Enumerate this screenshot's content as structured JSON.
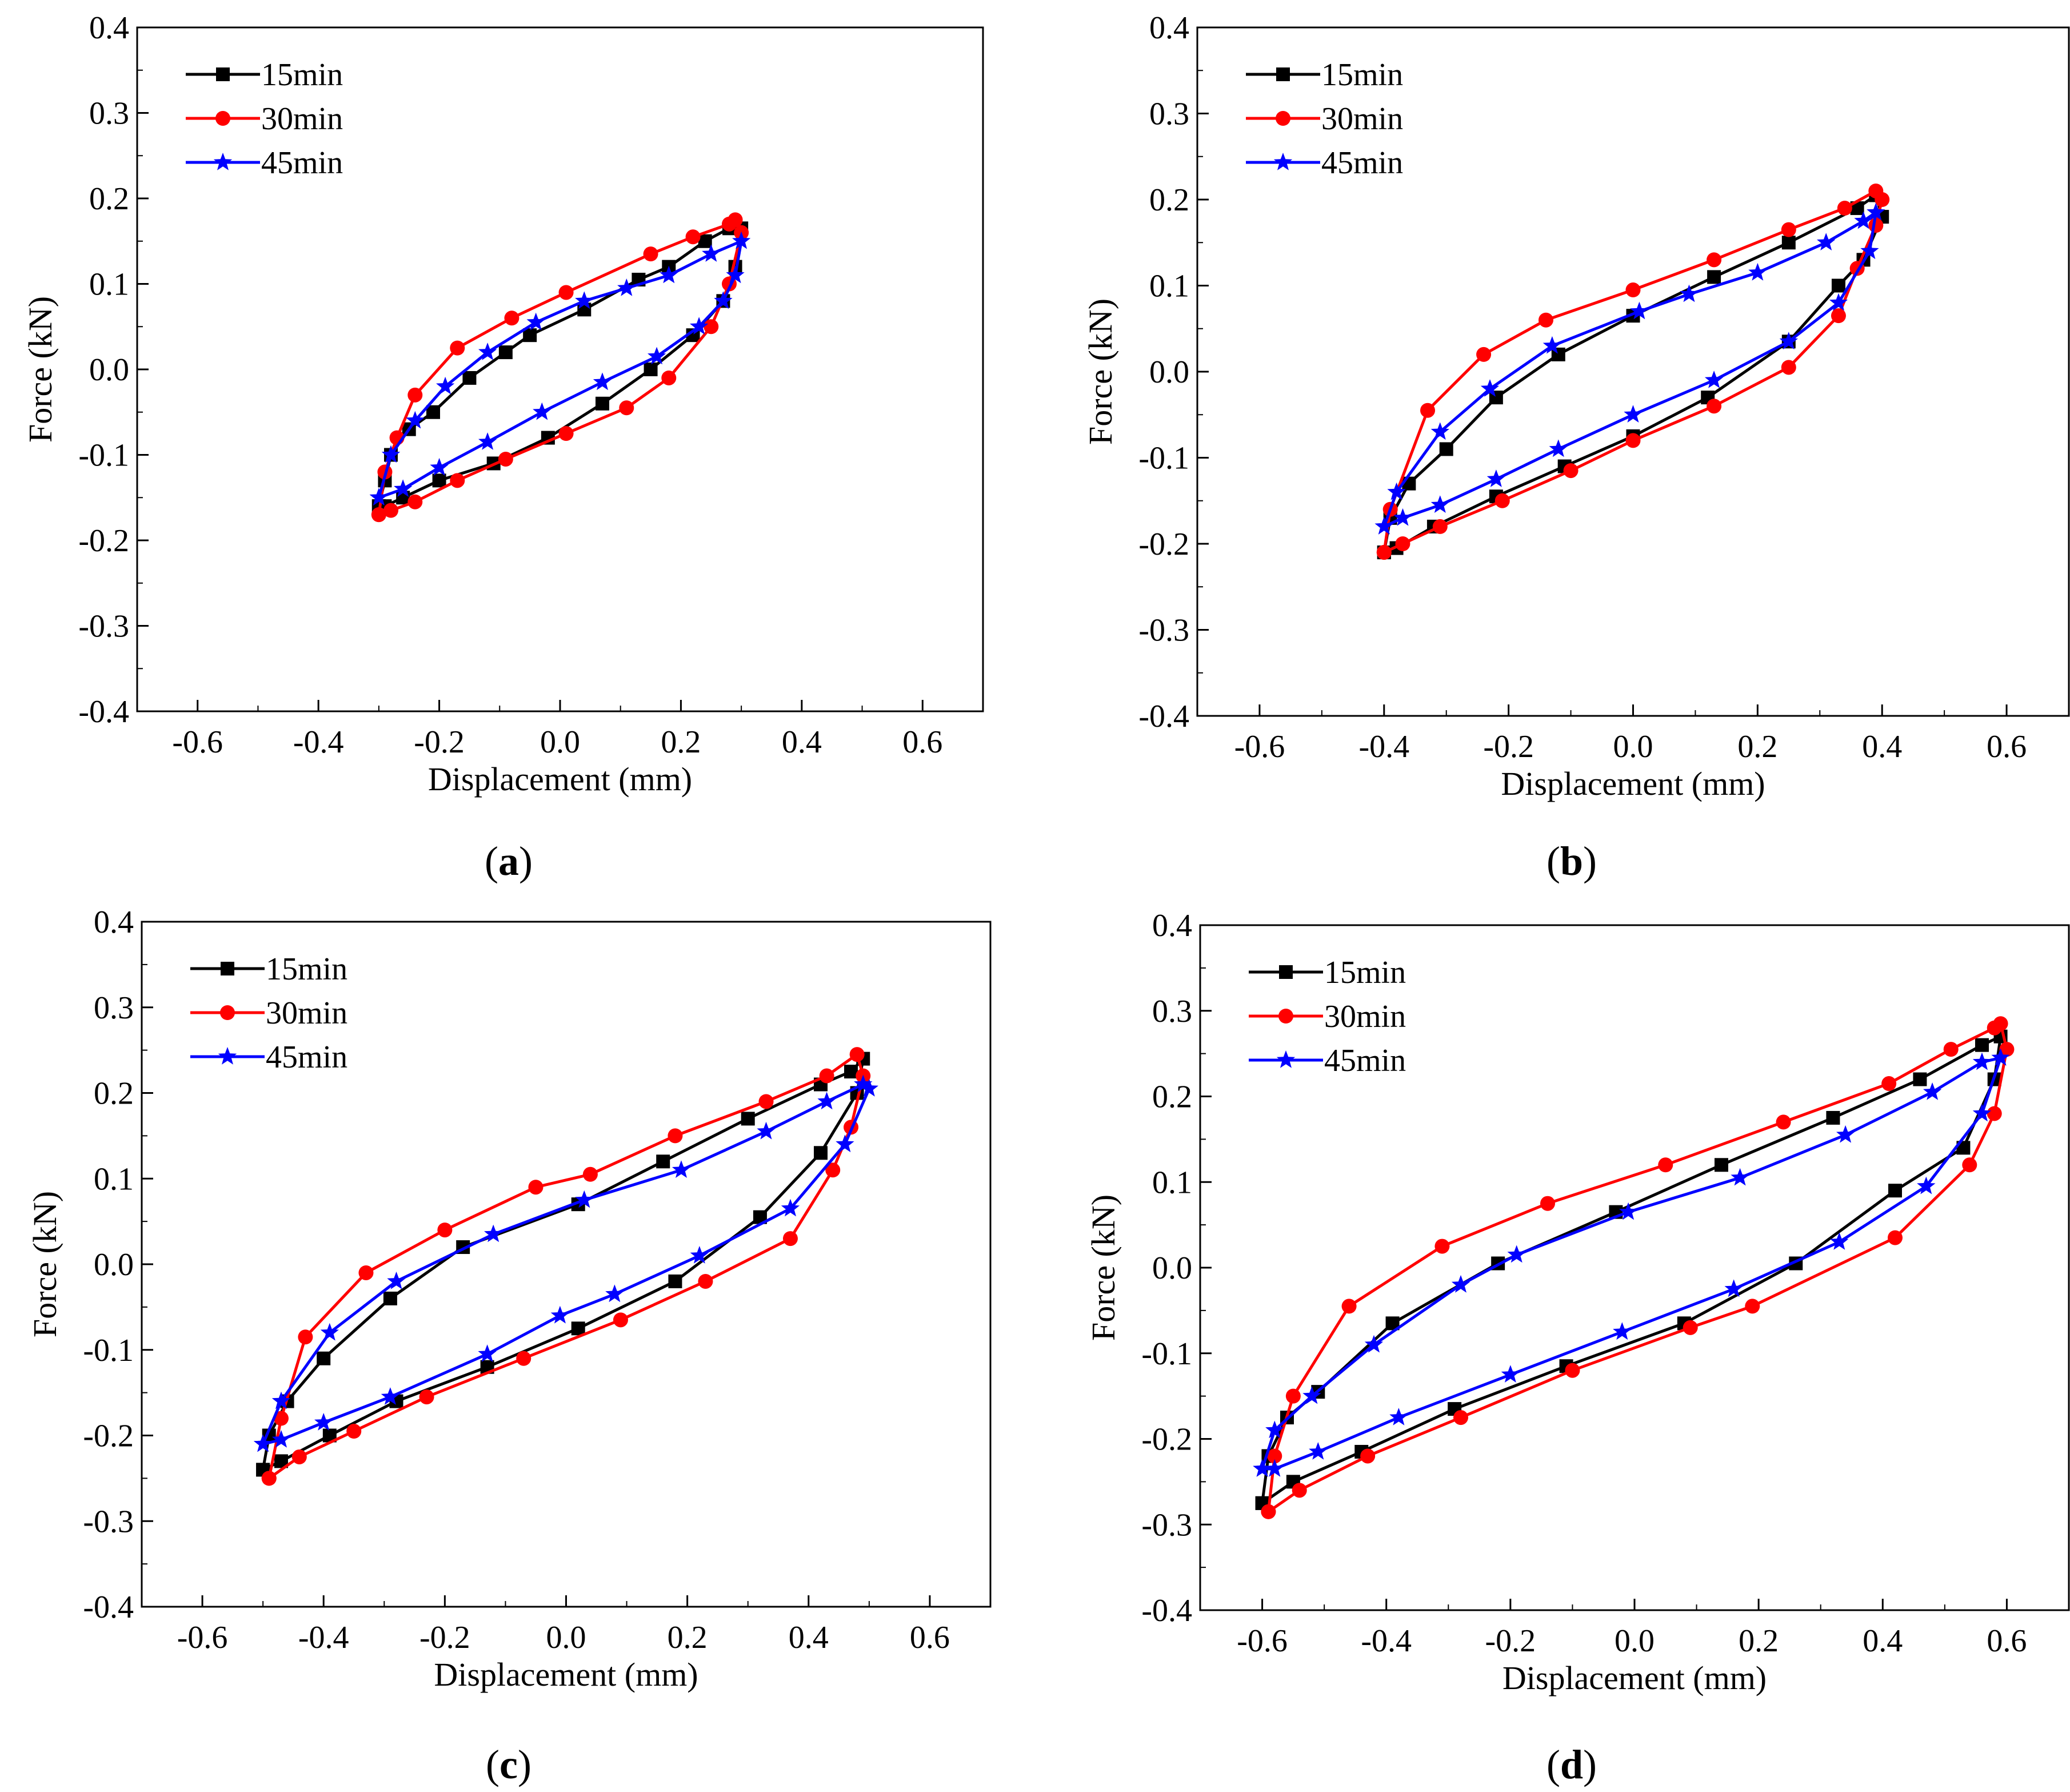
{
  "figure": {
    "panels": [
      "(a)",
      "(b)",
      "(c)",
      "(d)"
    ]
  },
  "chart_data": [
    {
      "type": "line",
      "caption_letter": "a",
      "xlabel": "Displacement (mm)",
      "ylabel": "Force (kN)",
      "xlim": [
        -0.7,
        0.7
      ],
      "ylim": [
        -0.4,
        0.4
      ],
      "xticks": [
        "-0.6",
        "-0.4",
        "-0.2",
        "0.0",
        "0.2",
        "0.4",
        "0.6"
      ],
      "yticks": [
        "-0.4",
        "-0.3",
        "-0.2",
        "-0.1",
        "0.0",
        "0.1",
        "0.2",
        "0.3",
        "0.4"
      ],
      "legend_position": "top-left",
      "series": [
        {
          "name": "15min",
          "color": "#000000",
          "marker": "square",
          "x": [
            -0.3,
            -0.29,
            -0.28,
            -0.25,
            -0.21,
            -0.15,
            -0.09,
            -0.05,
            0.04,
            0.13,
            0.18,
            0.24,
            0.28,
            0.3,
            0.29,
            0.27,
            0.22,
            0.15,
            0.07,
            -0.02,
            -0.11,
            -0.2,
            -0.26,
            -0.29,
            -0.3
          ],
          "y": [
            -0.16,
            -0.13,
            -0.1,
            -0.07,
            -0.05,
            -0.01,
            0.02,
            0.04,
            0.07,
            0.105,
            0.12,
            0.15,
            0.165,
            0.165,
            0.12,
            0.08,
            0.04,
            0.0,
            -0.04,
            -0.08,
            -0.11,
            -0.13,
            -0.15,
            -0.16,
            -0.16
          ]
        },
        {
          "name": "30min",
          "color": "#ff0000",
          "marker": "circle",
          "x": [
            -0.3,
            -0.29,
            -0.27,
            -0.24,
            -0.17,
            -0.08,
            0.01,
            0.15,
            0.22,
            0.28,
            0.29,
            0.3,
            0.28,
            0.25,
            0.18,
            0.11,
            0.01,
            -0.09,
            -0.17,
            -0.24,
            -0.28,
            -0.3
          ],
          "y": [
            -0.17,
            -0.12,
            -0.08,
            -0.03,
            0.025,
            0.06,
            0.09,
            0.135,
            0.155,
            0.17,
            0.175,
            0.16,
            0.1,
            0.05,
            -0.01,
            -0.045,
            -0.075,
            -0.105,
            -0.13,
            -0.155,
            -0.165,
            -0.17
          ]
        },
        {
          "name": "45min",
          "color": "#0000ff",
          "marker": "star",
          "x": [
            -0.3,
            -0.28,
            -0.24,
            -0.19,
            -0.12,
            -0.04,
            0.04,
            0.11,
            0.18,
            0.25,
            0.3,
            0.29,
            0.27,
            0.23,
            0.16,
            0.07,
            -0.03,
            -0.12,
            -0.2,
            -0.26,
            -0.3
          ],
          "y": [
            -0.15,
            -0.1,
            -0.06,
            -0.02,
            0.02,
            0.055,
            0.08,
            0.095,
            0.11,
            0.135,
            0.15,
            0.11,
            0.08,
            0.05,
            0.015,
            -0.015,
            -0.05,
            -0.085,
            -0.115,
            -0.14,
            -0.15
          ]
        }
      ]
    },
    {
      "type": "line",
      "caption_letter": "b",
      "xlabel": "Displacement (mm)",
      "ylabel": "Force (kN)",
      "xlim": [
        -0.7,
        0.7
      ],
      "ylim": [
        -0.4,
        0.4
      ],
      "xticks": [
        "-0.6",
        "-0.4",
        "-0.2",
        "0.0",
        "0.2",
        "0.4",
        "0.6"
      ],
      "yticks": [
        "-0.4",
        "-0.3",
        "-0.2",
        "-0.1",
        "0.0",
        "0.1",
        "0.2",
        "0.3",
        "0.4"
      ],
      "legend_position": "top-left",
      "series": [
        {
          "name": "15min",
          "color": "#000000",
          "marker": "square",
          "x": [
            -0.4,
            -0.39,
            -0.36,
            -0.3,
            -0.22,
            -0.12,
            0.0,
            0.13,
            0.25,
            0.36,
            0.39,
            0.4,
            0.37,
            0.33,
            0.25,
            0.12,
            0.0,
            -0.11,
            -0.22,
            -0.32,
            -0.38,
            -0.4
          ],
          "y": [
            -0.21,
            -0.17,
            -0.13,
            -0.09,
            -0.03,
            0.02,
            0.065,
            0.11,
            0.15,
            0.19,
            0.205,
            0.18,
            0.13,
            0.1,
            0.035,
            -0.03,
            -0.075,
            -0.11,
            -0.145,
            -0.18,
            -0.205,
            -0.21
          ]
        },
        {
          "name": "30min",
          "color": "#ff0000",
          "marker": "circle",
          "x": [
            -0.4,
            -0.39,
            -0.33,
            -0.24,
            -0.14,
            0.0,
            0.13,
            0.25,
            0.34,
            0.39,
            0.4,
            0.39,
            0.36,
            0.33,
            0.25,
            0.13,
            0.0,
            -0.1,
            -0.21,
            -0.31,
            -0.37,
            -0.4
          ],
          "y": [
            -0.21,
            -0.16,
            -0.045,
            0.02,
            0.06,
            0.095,
            0.13,
            0.165,
            0.19,
            0.21,
            0.2,
            0.17,
            0.12,
            0.065,
            0.005,
            -0.04,
            -0.08,
            -0.115,
            -0.15,
            -0.18,
            -0.2,
            -0.21
          ]
        },
        {
          "name": "45min",
          "color": "#0000ff",
          "marker": "star",
          "x": [
            -0.4,
            -0.38,
            -0.31,
            -0.23,
            -0.13,
            0.01,
            0.09,
            0.2,
            0.31,
            0.37,
            0.39,
            0.38,
            0.33,
            0.25,
            0.13,
            0.0,
            -0.12,
            -0.22,
            -0.31,
            -0.37,
            -0.4
          ],
          "y": [
            -0.18,
            -0.14,
            -0.07,
            -0.02,
            0.03,
            0.07,
            0.09,
            0.115,
            0.15,
            0.175,
            0.185,
            0.14,
            0.08,
            0.035,
            -0.01,
            -0.05,
            -0.09,
            -0.125,
            -0.155,
            -0.17,
            -0.18
          ]
        }
      ]
    },
    {
      "type": "line",
      "caption_letter": "c",
      "xlabel": "Displacement (mm)",
      "ylabel": "Force (kN)",
      "xlim": [
        -0.7,
        0.7
      ],
      "ylim": [
        -0.4,
        0.4
      ],
      "xticks": [
        "-0.6",
        "-0.4",
        "-0.2",
        "0.0",
        "0.2",
        "0.4",
        "0.6"
      ],
      "yticks": [
        "-0.4",
        "-0.3",
        "-0.2",
        "-0.1",
        "0.0",
        "0.1",
        "0.2",
        "0.3",
        "0.4"
      ],
      "legend_position": "top-left",
      "series": [
        {
          "name": "15min",
          "color": "#000000",
          "marker": "square",
          "x": [
            -0.5,
            -0.49,
            -0.46,
            -0.4,
            -0.29,
            -0.17,
            0.02,
            0.16,
            0.3,
            0.42,
            0.47,
            0.49,
            0.48,
            0.42,
            0.32,
            0.18,
            0.02,
            -0.13,
            -0.28,
            -0.39,
            -0.47,
            -0.5
          ],
          "y": [
            -0.24,
            -0.2,
            -0.16,
            -0.11,
            -0.04,
            0.02,
            0.07,
            0.12,
            0.17,
            0.21,
            0.225,
            0.24,
            0.2,
            0.13,
            0.055,
            -0.02,
            -0.075,
            -0.12,
            -0.16,
            -0.2,
            -0.23,
            -0.24
          ]
        },
        {
          "name": "30min",
          "color": "#ff0000",
          "marker": "circle",
          "x": [
            -0.49,
            -0.47,
            -0.43,
            -0.33,
            -0.2,
            -0.05,
            0.04,
            0.18,
            0.33,
            0.43,
            0.48,
            0.49,
            0.47,
            0.44,
            0.37,
            0.23,
            0.09,
            -0.07,
            -0.23,
            -0.35,
            -0.44,
            -0.49
          ],
          "y": [
            -0.25,
            -0.18,
            -0.085,
            -0.01,
            0.04,
            0.09,
            0.105,
            0.15,
            0.19,
            0.22,
            0.245,
            0.22,
            0.16,
            0.11,
            0.03,
            -0.02,
            -0.065,
            -0.11,
            -0.155,
            -0.195,
            -0.225,
            -0.25
          ]
        },
        {
          "name": "45min",
          "color": "#0000ff",
          "marker": "star",
          "x": [
            -0.5,
            -0.47,
            -0.39,
            -0.28,
            -0.12,
            0.03,
            0.19,
            0.33,
            0.43,
            0.49,
            0.5,
            0.46,
            0.37,
            0.22,
            0.08,
            -0.01,
            -0.13,
            -0.29,
            -0.4,
            -0.47,
            -0.5
          ],
          "y": [
            -0.21,
            -0.16,
            -0.08,
            -0.02,
            0.035,
            0.075,
            0.11,
            0.155,
            0.19,
            0.21,
            0.205,
            0.14,
            0.065,
            0.01,
            -0.035,
            -0.06,
            -0.105,
            -0.155,
            -0.185,
            -0.205,
            -0.21
          ]
        }
      ]
    },
    {
      "type": "line",
      "caption_letter": "d",
      "xlabel": "Displacement (mm)",
      "ylabel": "Force (kN)",
      "xlim": [
        -0.7,
        0.7
      ],
      "ylim": [
        -0.4,
        0.4
      ],
      "xticks": [
        "-0.6",
        "-0.4",
        "-0.2",
        "0.0",
        "0.2",
        "0.4",
        "0.6"
      ],
      "yticks": [
        "-0.4",
        "-0.3",
        "-0.2",
        "-0.1",
        "0.0",
        "0.1",
        "0.2",
        "0.3",
        "0.4"
      ],
      "legend_position": "top-left",
      "series": [
        {
          "name": "15min",
          "color": "#000000",
          "marker": "square",
          "x": [
            -0.6,
            -0.59,
            -0.56,
            -0.51,
            -0.39,
            -0.22,
            -0.03,
            0.14,
            0.32,
            0.46,
            0.56,
            0.59,
            0.58,
            0.53,
            0.42,
            0.26,
            0.08,
            -0.11,
            -0.29,
            -0.44,
            -0.55,
            -0.6
          ],
          "y": [
            -0.275,
            -0.22,
            -0.175,
            -0.145,
            -0.065,
            0.005,
            0.065,
            0.12,
            0.175,
            0.22,
            0.26,
            0.27,
            0.22,
            0.14,
            0.09,
            0.005,
            -0.065,
            -0.115,
            -0.165,
            -0.215,
            -0.25,
            -0.275
          ]
        },
        {
          "name": "30min",
          "color": "#ff0000",
          "marker": "circle",
          "x": [
            -0.59,
            -0.58,
            -0.55,
            -0.46,
            -0.31,
            -0.14,
            0.05,
            0.24,
            0.41,
            0.51,
            0.58,
            0.59,
            0.6,
            0.58,
            0.54,
            0.42,
            0.19,
            0.09,
            -0.1,
            -0.28,
            -0.43,
            -0.54,
            -0.59
          ],
          "y": [
            -0.285,
            -0.22,
            -0.15,
            -0.045,
            0.025,
            0.075,
            0.12,
            0.17,
            0.215,
            0.255,
            0.28,
            0.285,
            0.255,
            0.18,
            0.12,
            0.035,
            -0.045,
            -0.07,
            -0.12,
            -0.175,
            -0.22,
            -0.26,
            -0.285
          ]
        },
        {
          "name": "45min",
          "color": "#0000ff",
          "marker": "star",
          "x": [
            -0.6,
            -0.58,
            -0.52,
            -0.42,
            -0.28,
            -0.19,
            -0.01,
            0.17,
            0.34,
            0.48,
            0.56,
            0.59,
            0.56,
            0.47,
            0.33,
            0.16,
            -0.02,
            -0.2,
            -0.38,
            -0.51,
            -0.58,
            -0.6
          ],
          "y": [
            -0.235,
            -0.19,
            -0.15,
            -0.09,
            -0.02,
            0.015,
            0.065,
            0.105,
            0.155,
            0.205,
            0.24,
            0.245,
            0.18,
            0.095,
            0.03,
            -0.025,
            -0.075,
            -0.125,
            -0.175,
            -0.215,
            -0.235,
            -0.235
          ]
        }
      ]
    }
  ]
}
